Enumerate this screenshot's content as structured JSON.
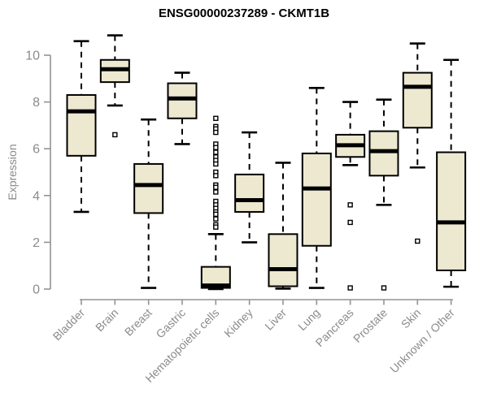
{
  "chart_data": {
    "type": "boxplot",
    "title": "ENSG00000237289 - CKMT1B",
    "ylabel": "Expression",
    "xlabel": "",
    "ylim": [
      0,
      10
    ],
    "yticks": [
      0,
      2,
      4,
      6,
      8,
      10
    ],
    "grid": false,
    "legend": "none",
    "categories": [
      "Bladder",
      "Brain",
      "Breast",
      "Gastric",
      "Hematopoietic cells",
      "Kidney",
      "Liver",
      "Lung",
      "Pancreas",
      "Prostate",
      "Skin",
      "Unknown / Other"
    ],
    "series": [
      {
        "category": "Bladder",
        "whisker_low": 3.3,
        "q1": 5.7,
        "median": 7.6,
        "q3": 8.3,
        "whisker_high": 10.6,
        "outliers": []
      },
      {
        "category": "Brain",
        "whisker_low": 7.85,
        "q1": 8.85,
        "median": 9.4,
        "q3": 9.8,
        "whisker_high": 10.85,
        "outliers": [
          6.6
        ]
      },
      {
        "category": "Breast",
        "whisker_low": 0.05,
        "q1": 3.25,
        "median": 4.45,
        "q3": 5.35,
        "whisker_high": 7.25,
        "outliers": []
      },
      {
        "category": "Gastric",
        "whisker_low": 6.2,
        "q1": 7.3,
        "median": 8.15,
        "q3": 8.8,
        "whisker_high": 9.25,
        "outliers": []
      },
      {
        "category": "Hematopoietic cells",
        "whisker_low": 0.0,
        "q1": 0.05,
        "median": 0.15,
        "q3": 0.95,
        "whisker_high": 2.35,
        "outliers": [
          7.3,
          6.95,
          6.85,
          6.7,
          6.2,
          6.05,
          5.85,
          5.65,
          5.5,
          5.35,
          5.0,
          4.85,
          4.45,
          4.35,
          4.15,
          3.75,
          3.6,
          3.45,
          3.3,
          3.2,
          3.0,
          2.75,
          2.65
        ]
      },
      {
        "category": "Kidney",
        "whisker_low": 2.0,
        "q1": 3.3,
        "median": 3.8,
        "q3": 4.9,
        "whisker_high": 6.7,
        "outliers": []
      },
      {
        "category": "Liver",
        "whisker_low": 0.02,
        "q1": 0.12,
        "median": 0.85,
        "q3": 2.35,
        "whisker_high": 5.4,
        "outliers": []
      },
      {
        "category": "Lung",
        "whisker_low": 0.05,
        "q1": 1.85,
        "median": 4.3,
        "q3": 5.8,
        "whisker_high": 8.6,
        "outliers": []
      },
      {
        "category": "Pancreas",
        "whisker_low": 5.3,
        "q1": 5.65,
        "median": 6.15,
        "q3": 6.6,
        "whisker_high": 8.0,
        "outliers": [
          3.6,
          2.85,
          0.05
        ]
      },
      {
        "category": "Prostate",
        "whisker_low": 3.6,
        "q1": 4.85,
        "median": 5.9,
        "q3": 6.75,
        "whisker_high": 8.1,
        "outliers": [
          0.05
        ]
      },
      {
        "category": "Skin",
        "whisker_low": 5.2,
        "q1": 6.9,
        "median": 8.65,
        "q3": 9.25,
        "whisker_high": 10.5,
        "outliers": [
          2.05
        ]
      },
      {
        "category": "Unknown / Other",
        "whisker_low": 0.1,
        "q1": 0.8,
        "median": 2.85,
        "q3": 5.85,
        "whisker_high": 9.8,
        "outliers": []
      }
    ],
    "colors": {
      "box_fill": "#EDE8D0",
      "box_border": "#000000",
      "median": "#000000",
      "whisker": "#000000",
      "outlier_border": "#000000",
      "outlier_fill": "#FFFFFF",
      "axis": "#939393",
      "tick_label": "#8B8B8B",
      "title": "#000000",
      "background": "#FFFFFF"
    }
  }
}
